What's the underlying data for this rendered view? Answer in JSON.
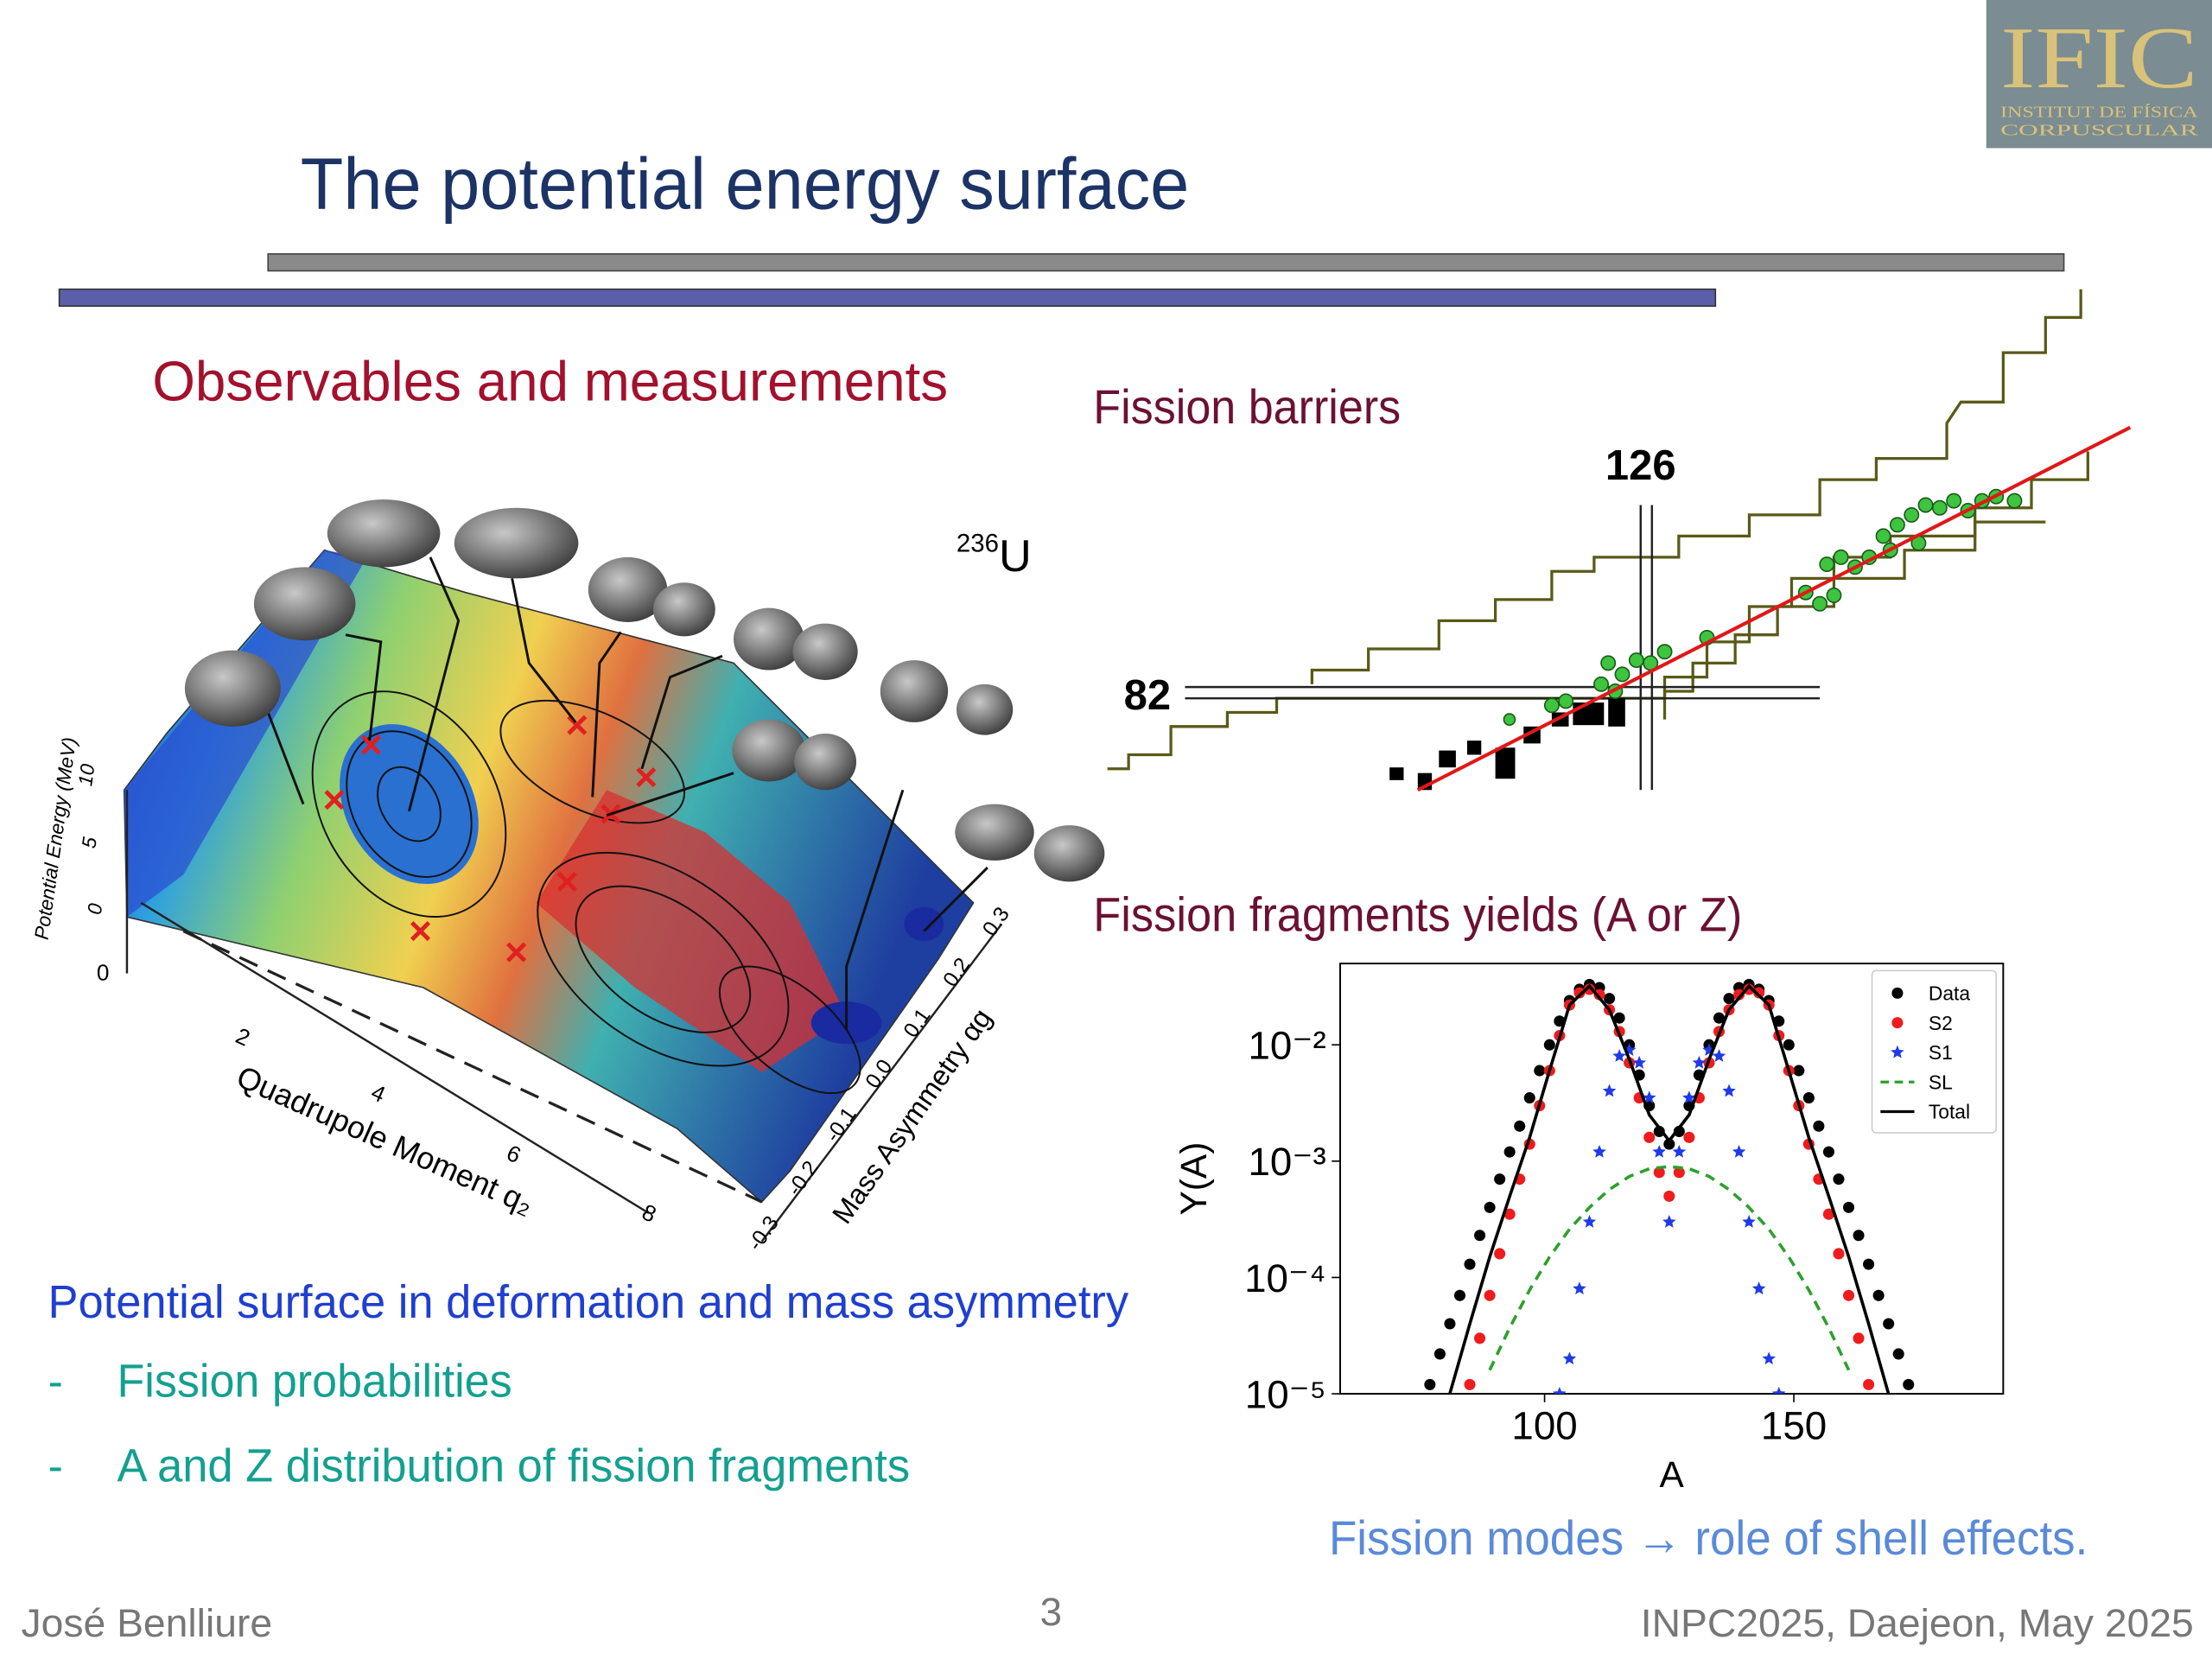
{
  "header": {
    "title": "The potential energy surface",
    "logo": {
      "name": "IFIC",
      "line1": "INSTITUT DE FÍSICA",
      "line2": "CORPUSCULAR"
    }
  },
  "left": {
    "heading": "Observables and measurements",
    "surface_plot": {
      "z_label": "Potential Energy (MeV)",
      "z_ticks": [
        "0",
        "5",
        "10"
      ],
      "x_label": "Quadrupole Moment q₂",
      "x_ticks": [
        "0",
        "2",
        "4",
        "6",
        "8"
      ],
      "y_label": "Mass Asymmetry αg",
      "y_ticks": [
        "-0.3",
        "-0.2",
        "-0.1",
        "0.0",
        "0.1",
        "0.2",
        "0.3"
      ],
      "nucleus_mass": "236",
      "nucleus_symbol": "U"
    },
    "summary": "Potential surface in deformation and mass asymmetry",
    "bullets": [
      {
        "marker": "-",
        "text": "Fission probabilities"
      },
      {
        "marker": "-",
        "text": "A and Z distribution of fission fragments"
      }
    ]
  },
  "right": {
    "barriers_heading": "Fission barriers",
    "magic_n": "126",
    "magic_z": "82",
    "yields_heading": "Fission fragments yields (A or Z)",
    "conclusion": "Fission modes → role of shell effects."
  },
  "yield_chart": {
    "type": "scatter",
    "xlabel": "A",
    "ylabel": "Y(A)",
    "xlim": [
      59,
      192
    ],
    "ylim": [
      1e-05,
      0.05
    ],
    "log_y": true,
    "xticks": [
      100,
      150
    ],
    "yticks": [
      {
        "value": 1e-05,
        "label": "10⁻⁵"
      },
      {
        "value": 0.0001,
        "label": "10⁻⁴"
      },
      {
        "value": 0.001,
        "label": "10⁻³"
      },
      {
        "value": 0.01,
        "label": "10⁻²"
      }
    ],
    "legend": "upper right",
    "series": [
      {
        "name": "Data",
        "color": "#000000",
        "style": "dots",
        "x": [
          77,
          79,
          81,
          83,
          85,
          87,
          89,
          91,
          93,
          95,
          97,
          99,
          101,
          103,
          105,
          107,
          109,
          111,
          113,
          115,
          117,
          119,
          121,
          123,
          125,
          127,
          129,
          131,
          133,
          135,
          137,
          139,
          141,
          143,
          145,
          147,
          149,
          151,
          153,
          155,
          157,
          159,
          161,
          163,
          165,
          167,
          169,
          171,
          173
        ],
        "values": [
          1.2e-05,
          2.2e-05,
          4e-05,
          7e-05,
          0.00013,
          0.00023,
          0.0004,
          0.0007,
          0.0012,
          0.002,
          0.0035,
          0.006,
          0.01,
          0.016,
          0.024,
          0.03,
          0.033,
          0.031,
          0.025,
          0.017,
          0.01,
          0.0055,
          0.003,
          0.0018,
          0.0014,
          0.0018,
          0.003,
          0.0055,
          0.01,
          0.017,
          0.025,
          0.031,
          0.033,
          0.03,
          0.024,
          0.016,
          0.01,
          0.006,
          0.0035,
          0.002,
          0.0012,
          0.0007,
          0.0004,
          0.00023,
          0.00013,
          7e-05,
          4e-05,
          2.2e-05,
          1.2e-05
        ]
      },
      {
        "name": "S2",
        "color": "#ee1c1c",
        "style": "dots",
        "x": [
          85,
          87,
          89,
          91,
          93,
          95,
          97,
          99,
          101,
          103,
          105,
          107,
          109,
          111,
          113,
          115,
          117,
          119,
          121,
          123,
          125,
          127,
          129,
          131,
          133,
          135,
          137,
          139,
          141,
          143,
          145,
          147,
          149,
          151,
          153,
          155,
          157,
          159,
          161,
          163,
          165
        ],
        "values": [
          1.2e-05,
          3e-05,
          7e-05,
          0.00016,
          0.00035,
          0.0007,
          0.0014,
          0.003,
          0.006,
          0.012,
          0.022,
          0.028,
          0.03,
          0.027,
          0.02,
          0.013,
          0.007,
          0.0035,
          0.0016,
          0.0008,
          0.0005,
          0.0008,
          0.0016,
          0.0035,
          0.007,
          0.013,
          0.02,
          0.027,
          0.03,
          0.028,
          0.022,
          0.012,
          0.006,
          0.003,
          0.0014,
          0.0007,
          0.00035,
          0.00016,
          7e-05,
          3e-05,
          1.2e-05
        ]
      },
      {
        "name": "S1",
        "color": "#1f3be8",
        "style": "stars",
        "x": [
          103,
          105,
          107,
          109,
          111,
          113,
          115,
          117,
          119,
          121,
          123,
          125,
          127,
          129,
          131,
          133,
          135,
          137,
          139,
          141,
          143,
          145,
          147
        ],
        "values": [
          1e-05,
          2e-05,
          8e-05,
          0.0003,
          0.0012,
          0.004,
          0.008,
          0.009,
          0.007,
          0.0035,
          0.0012,
          0.0003,
          0.0012,
          0.0035,
          0.007,
          0.009,
          0.008,
          0.004,
          0.0012,
          0.0003,
          8e-05,
          2e-05,
          1e-05
        ]
      },
      {
        "name": "SL",
        "color": "#2ca02c",
        "style": "dashed",
        "x": [
          89,
          93,
          97,
          101,
          105,
          109,
          113,
          117,
          121,
          125,
          129,
          133,
          137,
          141,
          145,
          149,
          153,
          157,
          161
        ],
        "values": [
          1.6e-05,
          3.7e-05,
          7.8e-05,
          0.00015,
          0.00026,
          0.0004,
          0.00057,
          0.00074,
          0.00086,
          0.0009,
          0.00086,
          0.00074,
          0.00057,
          0.0004,
          0.00026,
          0.00015,
          7.8e-05,
          3.7e-05,
          1.6e-05
        ]
      },
      {
        "name": "Total",
        "color": "#000000",
        "style": "solid",
        "x": [
          81,
          85,
          89,
          93,
          97,
          101,
          105,
          109,
          113,
          117,
          121,
          125,
          129,
          133,
          137,
          141,
          145,
          149,
          153,
          157,
          161,
          165,
          169
        ],
        "values": [
          1e-05,
          4e-05,
          0.00015,
          0.0005,
          0.0016,
          0.006,
          0.022,
          0.032,
          0.02,
          0.0075,
          0.0025,
          0.0015,
          0.0025,
          0.0075,
          0.02,
          0.032,
          0.022,
          0.006,
          0.0016,
          0.0005,
          0.00015,
          4e-05,
          1e-05
        ]
      }
    ]
  },
  "footer": {
    "author": "José Benlliure",
    "page": "3",
    "event": "INPC2025, Daejeon, May 2025"
  }
}
